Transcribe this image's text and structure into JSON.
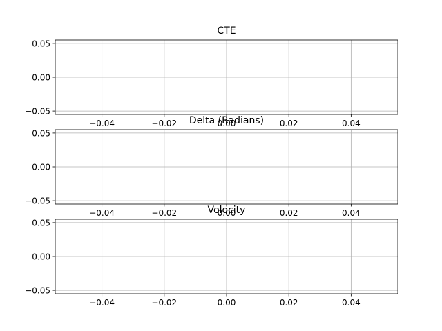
{
  "chart_data": [
    {
      "type": "line",
      "title": "CTE",
      "xlabel": "",
      "ylabel": "",
      "series": [],
      "xlim": [
        -0.055,
        0.055
      ],
      "ylim": [
        -0.055,
        0.055
      ],
      "x_ticks": [
        -0.04,
        -0.02,
        0.0,
        0.02,
        0.04
      ],
      "x_tick_labels": [
        "−0.04",
        "−0.02",
        "0.00",
        "0.02",
        "0.04"
      ],
      "y_ticks": [
        0.05,
        0.0,
        -0.05
      ],
      "y_tick_labels": [
        "0.05",
        "0.00",
        "−0.05"
      ],
      "grid": true
    },
    {
      "type": "line",
      "title": "Delta (Radians)",
      "xlabel": "",
      "ylabel": "",
      "series": [],
      "xlim": [
        -0.055,
        0.055
      ],
      "ylim": [
        -0.055,
        0.055
      ],
      "x_ticks": [
        -0.04,
        -0.02,
        0.0,
        0.02,
        0.04
      ],
      "x_tick_labels": [
        "−0.04",
        "−0.02",
        "0.00",
        "0.02",
        "0.04"
      ],
      "y_ticks": [
        0.05,
        0.0,
        -0.05
      ],
      "y_tick_labels": [
        "0.05",
        "0.00",
        "−0.05"
      ],
      "grid": true
    },
    {
      "type": "line",
      "title": "Velocity",
      "xlabel": "",
      "ylabel": "",
      "series": [],
      "xlim": [
        -0.055,
        0.055
      ],
      "ylim": [
        -0.055,
        0.055
      ],
      "x_ticks": [
        -0.04,
        -0.02,
        0.0,
        0.02,
        0.04
      ],
      "x_tick_labels": [
        "−0.04",
        "−0.02",
        "0.00",
        "0.02",
        "0.04"
      ],
      "y_ticks": [
        0.05,
        0.0,
        -0.05
      ],
      "y_tick_labels": [
        "0.05",
        "0.00",
        "−0.05"
      ],
      "grid": true
    }
  ]
}
